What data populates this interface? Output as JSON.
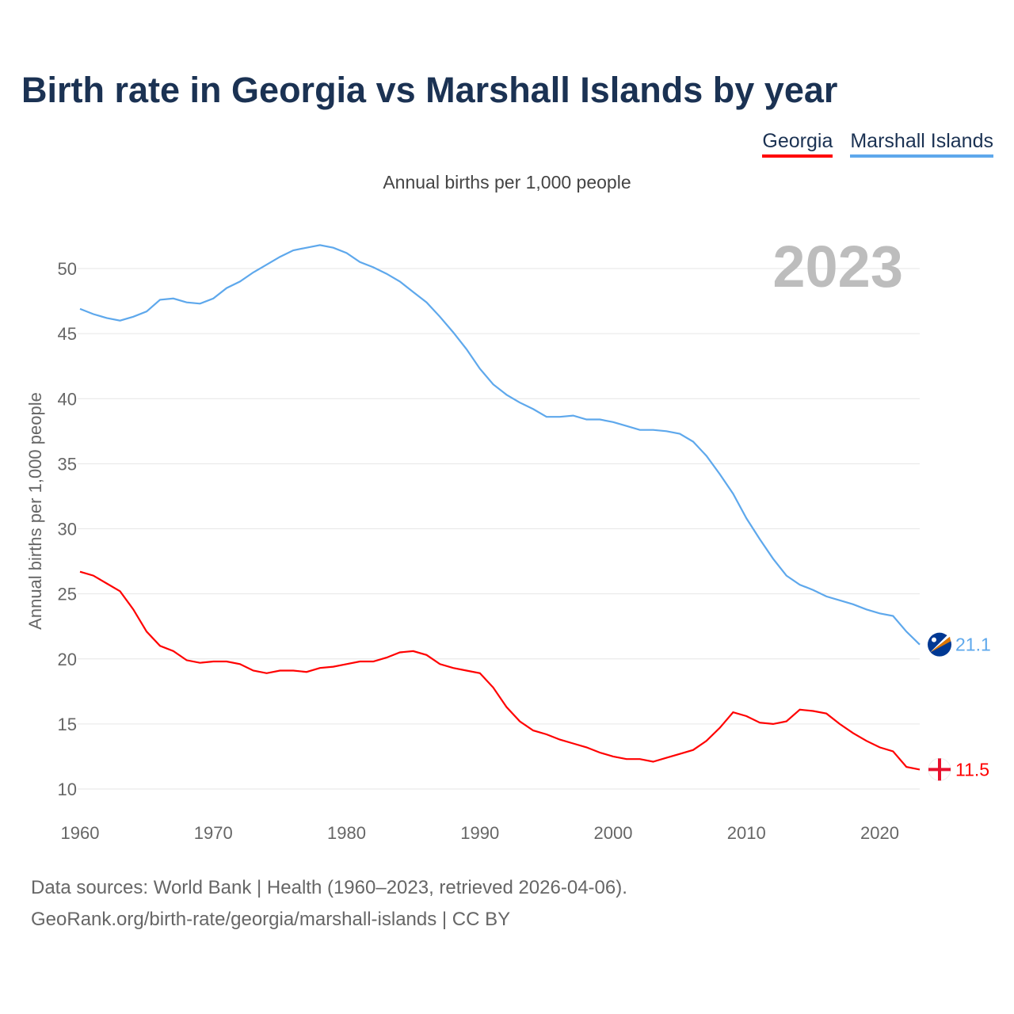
{
  "title": "Birth rate in Georgia vs Marshall Islands by year",
  "subtitle": "Annual births per 1,000 people",
  "footer": {
    "line1": "Data sources: World Bank | Health (1960–2023, retrieved 2026-04-06).",
    "line2": "GeoRank.org/birth-rate/georgia/marshall-islands | CC BY"
  },
  "colors": {
    "georgia": "#ff0000",
    "marshall": "#5ea8ec",
    "title": "#1b3253"
  },
  "chart_data": {
    "type": "line",
    "title": "Birth rate in Georgia vs Marshall Islands by year",
    "ylabel": "Annual births per 1,000 people",
    "xlabel": "",
    "year_label": "2023",
    "xlim": [
      1960,
      2023
    ],
    "ylim": [
      8,
      52
    ],
    "xticks": [
      1960,
      1970,
      1980,
      1990,
      2000,
      2010,
      2020
    ],
    "yticks": [
      10,
      15,
      20,
      25,
      30,
      35,
      40,
      45,
      50
    ],
    "grid": true,
    "legend_placement": "top-right",
    "x_start": 1960,
    "series": [
      {
        "name": "Georgia",
        "end_label": "11.5",
        "values": [
          26.7,
          26.4,
          25.8,
          25.2,
          23.8,
          22.1,
          21.0,
          20.6,
          19.9,
          19.7,
          19.8,
          19.8,
          19.6,
          19.1,
          18.9,
          19.1,
          19.1,
          19.0,
          19.3,
          19.4,
          19.6,
          19.8,
          19.8,
          20.1,
          20.5,
          20.6,
          20.3,
          19.6,
          19.3,
          19.1,
          18.9,
          17.8,
          16.3,
          15.2,
          14.5,
          14.2,
          13.8,
          13.5,
          13.2,
          12.8,
          12.5,
          12.3,
          12.3,
          12.1,
          12.4,
          12.7,
          13.0,
          13.7,
          14.7,
          15.9,
          15.6,
          15.1,
          15.0,
          15.2,
          16.1,
          16.0,
          15.8,
          15.0,
          14.3,
          13.7,
          13.2,
          12.9,
          11.7,
          11.5
        ]
      },
      {
        "name": "Marshall Islands",
        "end_label": "21.1",
        "values": [
          46.9,
          46.5,
          46.2,
          46.0,
          46.3,
          46.7,
          47.6,
          47.7,
          47.4,
          47.3,
          47.7,
          48.5,
          49.0,
          49.7,
          50.3,
          50.9,
          51.4,
          51.6,
          51.8,
          51.6,
          51.2,
          50.5,
          50.1,
          49.6,
          49.0,
          48.2,
          47.4,
          46.3,
          45.1,
          43.8,
          42.3,
          41.1,
          40.3,
          39.7,
          39.2,
          38.6,
          38.6,
          38.7,
          38.4,
          38.4,
          38.2,
          37.9,
          37.6,
          37.6,
          37.5,
          37.3,
          36.7,
          35.6,
          34.2,
          32.7,
          30.8,
          29.2,
          27.7,
          26.4,
          25.7,
          25.3,
          24.8,
          24.5,
          24.2,
          23.8,
          23.5,
          23.3,
          22.1,
          21.1
        ]
      }
    ]
  }
}
